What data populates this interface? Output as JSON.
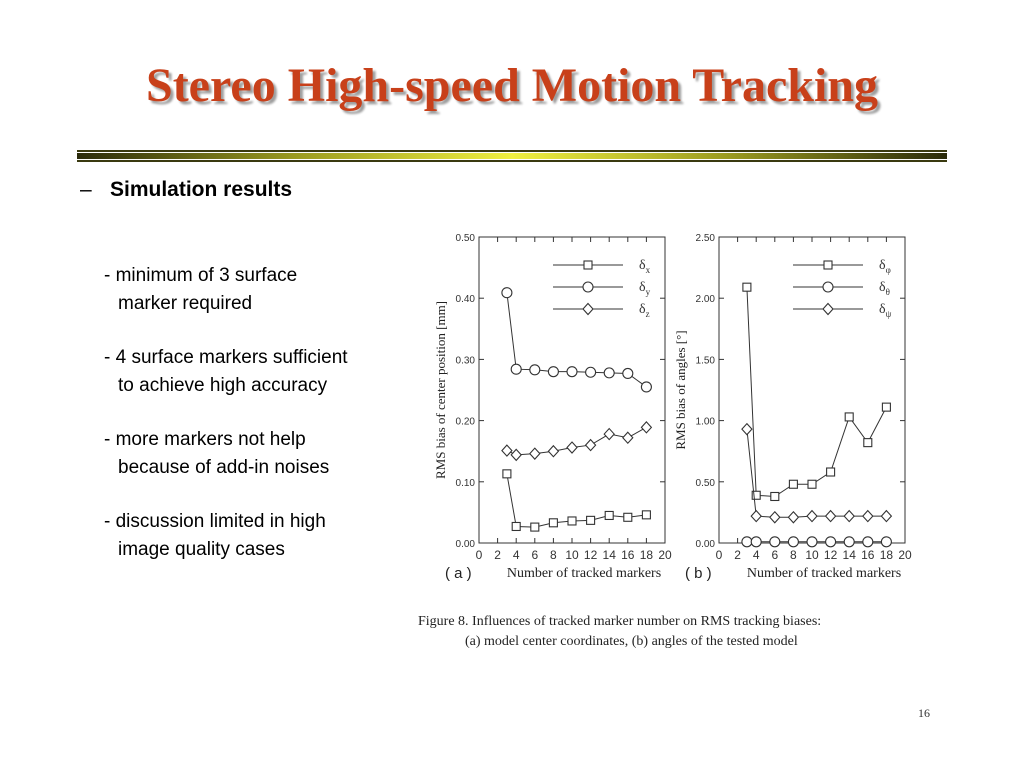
{
  "slide": {
    "title": "Stereo High-speed Motion Tracking",
    "bullet_dash": "–",
    "heading": "Simulation results",
    "points": [
      {
        "line1": "- minimum of 3 surface",
        "line2": "marker required"
      },
      {
        "line1": "- 4 surface markers sufficient",
        "line2": "to achieve high accuracy"
      },
      {
        "line1": "- more markers not help",
        "line2": "because of add-in noises"
      },
      {
        "line1": "- discussion limited in high",
        "line2": "image quality cases"
      }
    ],
    "caption_line1": "Figure 8.    Influences of tracked marker number on RMS tracking biases:",
    "caption_line2": "(a) model center coordinates, (b) angles of the tested model",
    "page_number": "16"
  },
  "chart_data": [
    {
      "type": "line",
      "panel_label": "( a )",
      "xlabel": "Number of tracked markers",
      "ylabel": "RMS bias of center position [mm]",
      "xlim": [
        0,
        20
      ],
      "ylim": [
        0,
        0.5
      ],
      "x_ticks": [
        0,
        2,
        4,
        6,
        8,
        10,
        12,
        14,
        16,
        18,
        20
      ],
      "y_ticks": [
        "0.00",
        "0.10",
        "0.20",
        "0.30",
        "0.40",
        "0.50"
      ],
      "x": [
        3,
        4,
        6,
        8,
        10,
        12,
        14,
        16,
        18
      ],
      "series": [
        {
          "name": "δx",
          "base": "δ",
          "sub": "x",
          "marker": "square",
          "values": [
            0.113,
            0.027,
            0.026,
            0.033,
            0.036,
            0.037,
            0.045,
            0.042,
            0.046
          ]
        },
        {
          "name": "δy",
          "base": "δ",
          "sub": "y",
          "marker": "circle",
          "values": [
            0.409,
            0.284,
            0.283,
            0.28,
            0.28,
            0.279,
            0.278,
            0.277,
            0.255
          ]
        },
        {
          "name": "δz",
          "base": "δ",
          "sub": "z",
          "marker": "diamond",
          "values": [
            0.151,
            0.144,
            0.146,
            0.15,
            0.156,
            0.16,
            0.178,
            0.172,
            0.189
          ]
        }
      ],
      "legend": "top-right",
      "grid": false,
      "colors": {
        "line": "#333333",
        "axis": "#333333"
      }
    },
    {
      "type": "line",
      "panel_label": "( b )",
      "xlabel": "Number of tracked markers",
      "ylabel": "RMS bias of angles [°]",
      "xlim": [
        0,
        20
      ],
      "ylim": [
        0,
        2.5
      ],
      "x_ticks": [
        0,
        2,
        4,
        6,
        8,
        10,
        12,
        14,
        16,
        18,
        20
      ],
      "y_ticks": [
        "0.00",
        "0.50",
        "1.00",
        "1.50",
        "2.00",
        "2.50"
      ],
      "x": [
        3,
        4,
        6,
        8,
        10,
        12,
        14,
        16,
        18
      ],
      "series": [
        {
          "name": "δφ",
          "base": "δ",
          "sub": "φ",
          "marker": "square",
          "values": [
            2.09,
            0.39,
            0.38,
            0.48,
            0.48,
            0.58,
            1.03,
            0.82,
            1.11
          ]
        },
        {
          "name": "δθ",
          "base": "δ",
          "sub": "θ",
          "marker": "circle",
          "values": [
            0.01,
            0.01,
            0.01,
            0.01,
            0.01,
            0.01,
            0.01,
            0.01,
            0.01
          ]
        },
        {
          "name": "δψ",
          "base": "δ",
          "sub": "ψ",
          "marker": "diamond",
          "values": [
            0.93,
            0.22,
            0.21,
            0.21,
            0.22,
            0.22,
            0.22,
            0.22,
            0.22
          ]
        }
      ],
      "legend": "top-right",
      "grid": false,
      "colors": {
        "line": "#333333",
        "axis": "#333333"
      }
    }
  ]
}
